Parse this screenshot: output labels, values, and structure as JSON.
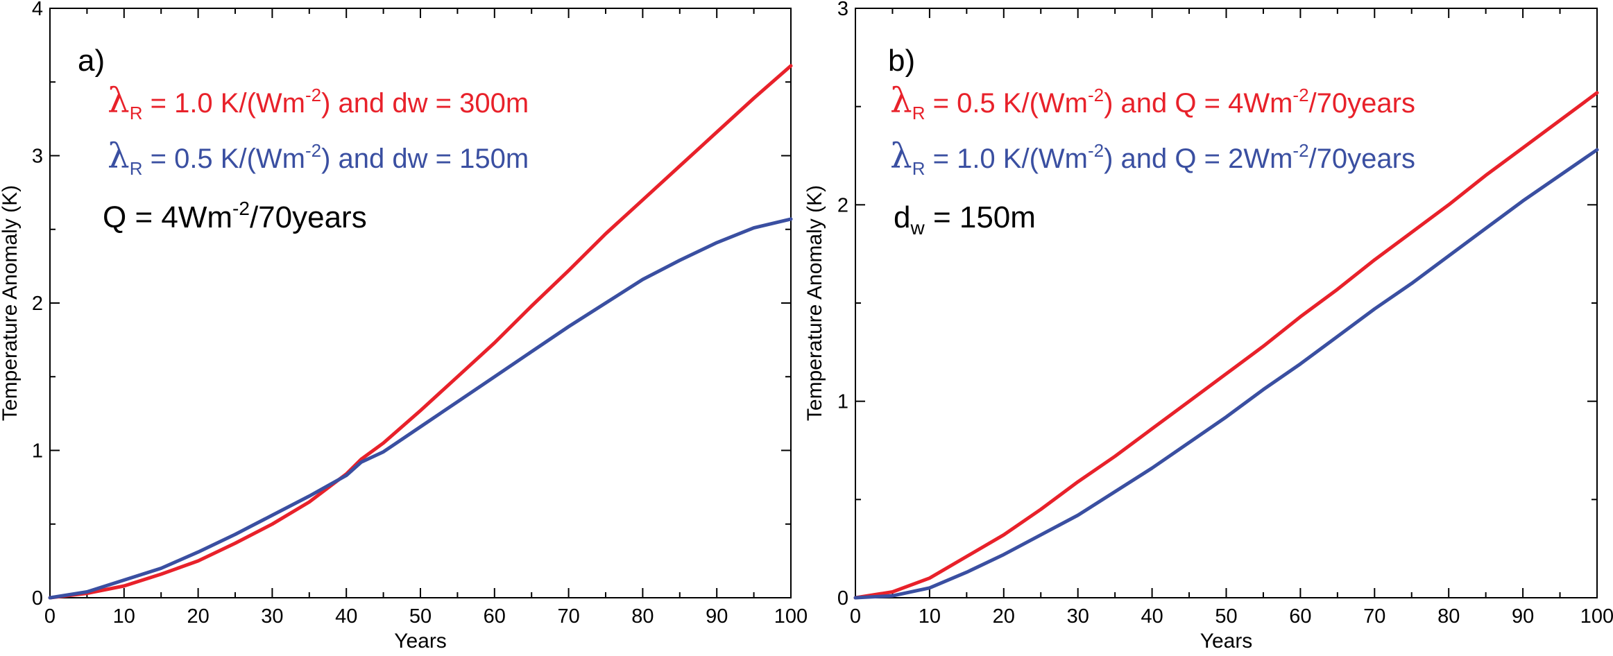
{
  "chart_data": [
    {
      "type": "line",
      "panel_label": "a)",
      "xlabel": "Years",
      "ylabel": "Temperature Anomaly (K)",
      "xlim": [
        0,
        100
      ],
      "ylim": [
        0,
        4
      ],
      "xticks": [
        0,
        10,
        20,
        30,
        40,
        50,
        60,
        70,
        80,
        90,
        100
      ],
      "yticks": [
        0,
        1,
        2,
        3,
        4
      ],
      "grid": false,
      "x": [
        0,
        5,
        10,
        15,
        20,
        25,
        30,
        35,
        40,
        42,
        45,
        50,
        55,
        60,
        65,
        70,
        75,
        80,
        85,
        90,
        95,
        100
      ],
      "series": [
        {
          "color": "#e8212a",
          "values": [
            0,
            0.03,
            0.08,
            0.16,
            0.25,
            0.37,
            0.5,
            0.65,
            0.84,
            0.94,
            1.05,
            1.27,
            1.5,
            1.73,
            1.98,
            2.22,
            2.47,
            2.7,
            2.93,
            3.16,
            3.39,
            3.61
          ]
        },
        {
          "color": "#3a4fa1",
          "values": [
            0,
            0.04,
            0.12,
            0.2,
            0.31,
            0.43,
            0.56,
            0.69,
            0.83,
            0.92,
            0.99,
            1.16,
            1.33,
            1.5,
            1.67,
            1.84,
            2.0,
            2.16,
            2.29,
            2.41,
            2.51,
            2.57
          ]
        }
      ],
      "annotations": [
        {
          "color": "#e8212a",
          "lambda": "λ",
          "sub": "R",
          "pre": " = 1.0 K/(Wm",
          "sup": "-2",
          "post": ")  and dw = 300m"
        },
        {
          "color": "#3a4fa1",
          "lambda": "λ",
          "sub": "R",
          "pre": " = 0.5 K/(Wm",
          "sup": "-2",
          "post": ")  and dw = 150m"
        }
      ],
      "note": {
        "pre": "Q = 4Wm",
        "sup": "-2",
        "post": "/70years"
      }
    },
    {
      "type": "line",
      "panel_label": "b)",
      "xlabel": "Years",
      "ylabel": "Temperature Anomaly (K)",
      "xlim": [
        0,
        100
      ],
      "ylim": [
        0,
        3
      ],
      "xticks": [
        0,
        10,
        20,
        30,
        40,
        50,
        60,
        70,
        80,
        90,
        100
      ],
      "yticks": [
        0,
        1,
        2,
        3
      ],
      "grid": false,
      "x": [
        0,
        5,
        10,
        15,
        20,
        25,
        30,
        35,
        40,
        45,
        50,
        55,
        60,
        65,
        70,
        75,
        80,
        85,
        90,
        95,
        100
      ],
      "series": [
        {
          "color": "#e8212a",
          "values": [
            0,
            0.03,
            0.1,
            0.21,
            0.32,
            0.45,
            0.59,
            0.72,
            0.86,
            1.0,
            1.14,
            1.28,
            1.43,
            1.57,
            1.72,
            1.86,
            2.0,
            2.15,
            2.29,
            2.43,
            2.57
          ]
        },
        {
          "color": "#3a4fa1",
          "values": [
            0,
            0.01,
            0.05,
            0.13,
            0.22,
            0.32,
            0.42,
            0.54,
            0.66,
            0.79,
            0.92,
            1.06,
            1.19,
            1.33,
            1.47,
            1.6,
            1.74,
            1.88,
            2.02,
            2.15,
            2.28
          ]
        }
      ],
      "annotations": [
        {
          "color": "#e8212a",
          "lambda": "λ",
          "sub": "R",
          "pre": " = 0.5 K/(Wm",
          "sup": "-2",
          "post": ")  and Q = 4Wm",
          "sup2": "-2",
          "post2": "/70years"
        },
        {
          "color": "#3a4fa1",
          "lambda": "λ",
          "sub": "R",
          "pre": " = 1.0 K/(Wm",
          "sup": "-2",
          "post": ")  and Q = 2Wm",
          "sup2": "-2",
          "post2": "/70years"
        }
      ],
      "note": {
        "pre": "d",
        "sub": "w",
        "post": " = 150m"
      }
    }
  ]
}
